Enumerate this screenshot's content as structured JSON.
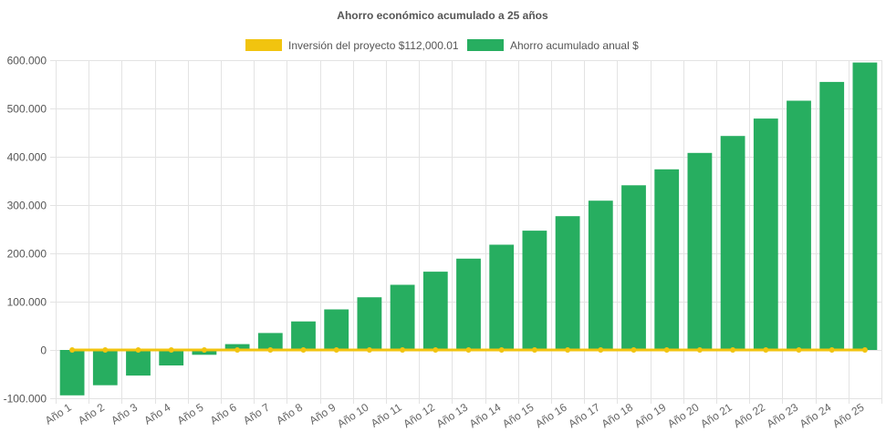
{
  "chart_data": {
    "type": "bar",
    "title": "Ahorro económico acumulado a 25 años",
    "categories": [
      "Año 1",
      "Año 2",
      "Año 3",
      "Año 4",
      "Año 5",
      "Año 6",
      "Año 7",
      "Año 8",
      "Año 9",
      "Año 10",
      "Año 11",
      "Año 12",
      "Año 13",
      "Año 14",
      "Año 15",
      "Año 16",
      "Año 17",
      "Año 18",
      "Año 19",
      "Año 20",
      "Año 21",
      "Año 22",
      "Año 23",
      "Año 24",
      "Año 25"
    ],
    "series": [
      {
        "name": "Inversión del proyecto $112,000.01",
        "type": "line",
        "color": "#f1c40f",
        "values": [
          0,
          0,
          0,
          0,
          0,
          0,
          0,
          0,
          0,
          0,
          0,
          0,
          0,
          0,
          0,
          0,
          0,
          0,
          0,
          0,
          0,
          0,
          0,
          0,
          0
        ]
      },
      {
        "name": "Ahorro acumulado anual $",
        "type": "bar",
        "color": "#27ae60",
        "values": [
          -94000,
          -73000,
          -53000,
          -32000,
          -10000,
          12000,
          35000,
          59000,
          84000,
          109000,
          135000,
          162000,
          189000,
          218000,
          247000,
          277000,
          309000,
          341000,
          374000,
          408000,
          443000,
          479000,
          516000,
          555000,
          595000
        ]
      }
    ],
    "ylim": [
      -100000,
      600000
    ],
    "yticks": [
      "600.000",
      "500.000",
      "400.000",
      "300.000",
      "200.000",
      "100.000",
      "0",
      "-100.000"
    ],
    "grid": true,
    "legend_position": "top"
  }
}
